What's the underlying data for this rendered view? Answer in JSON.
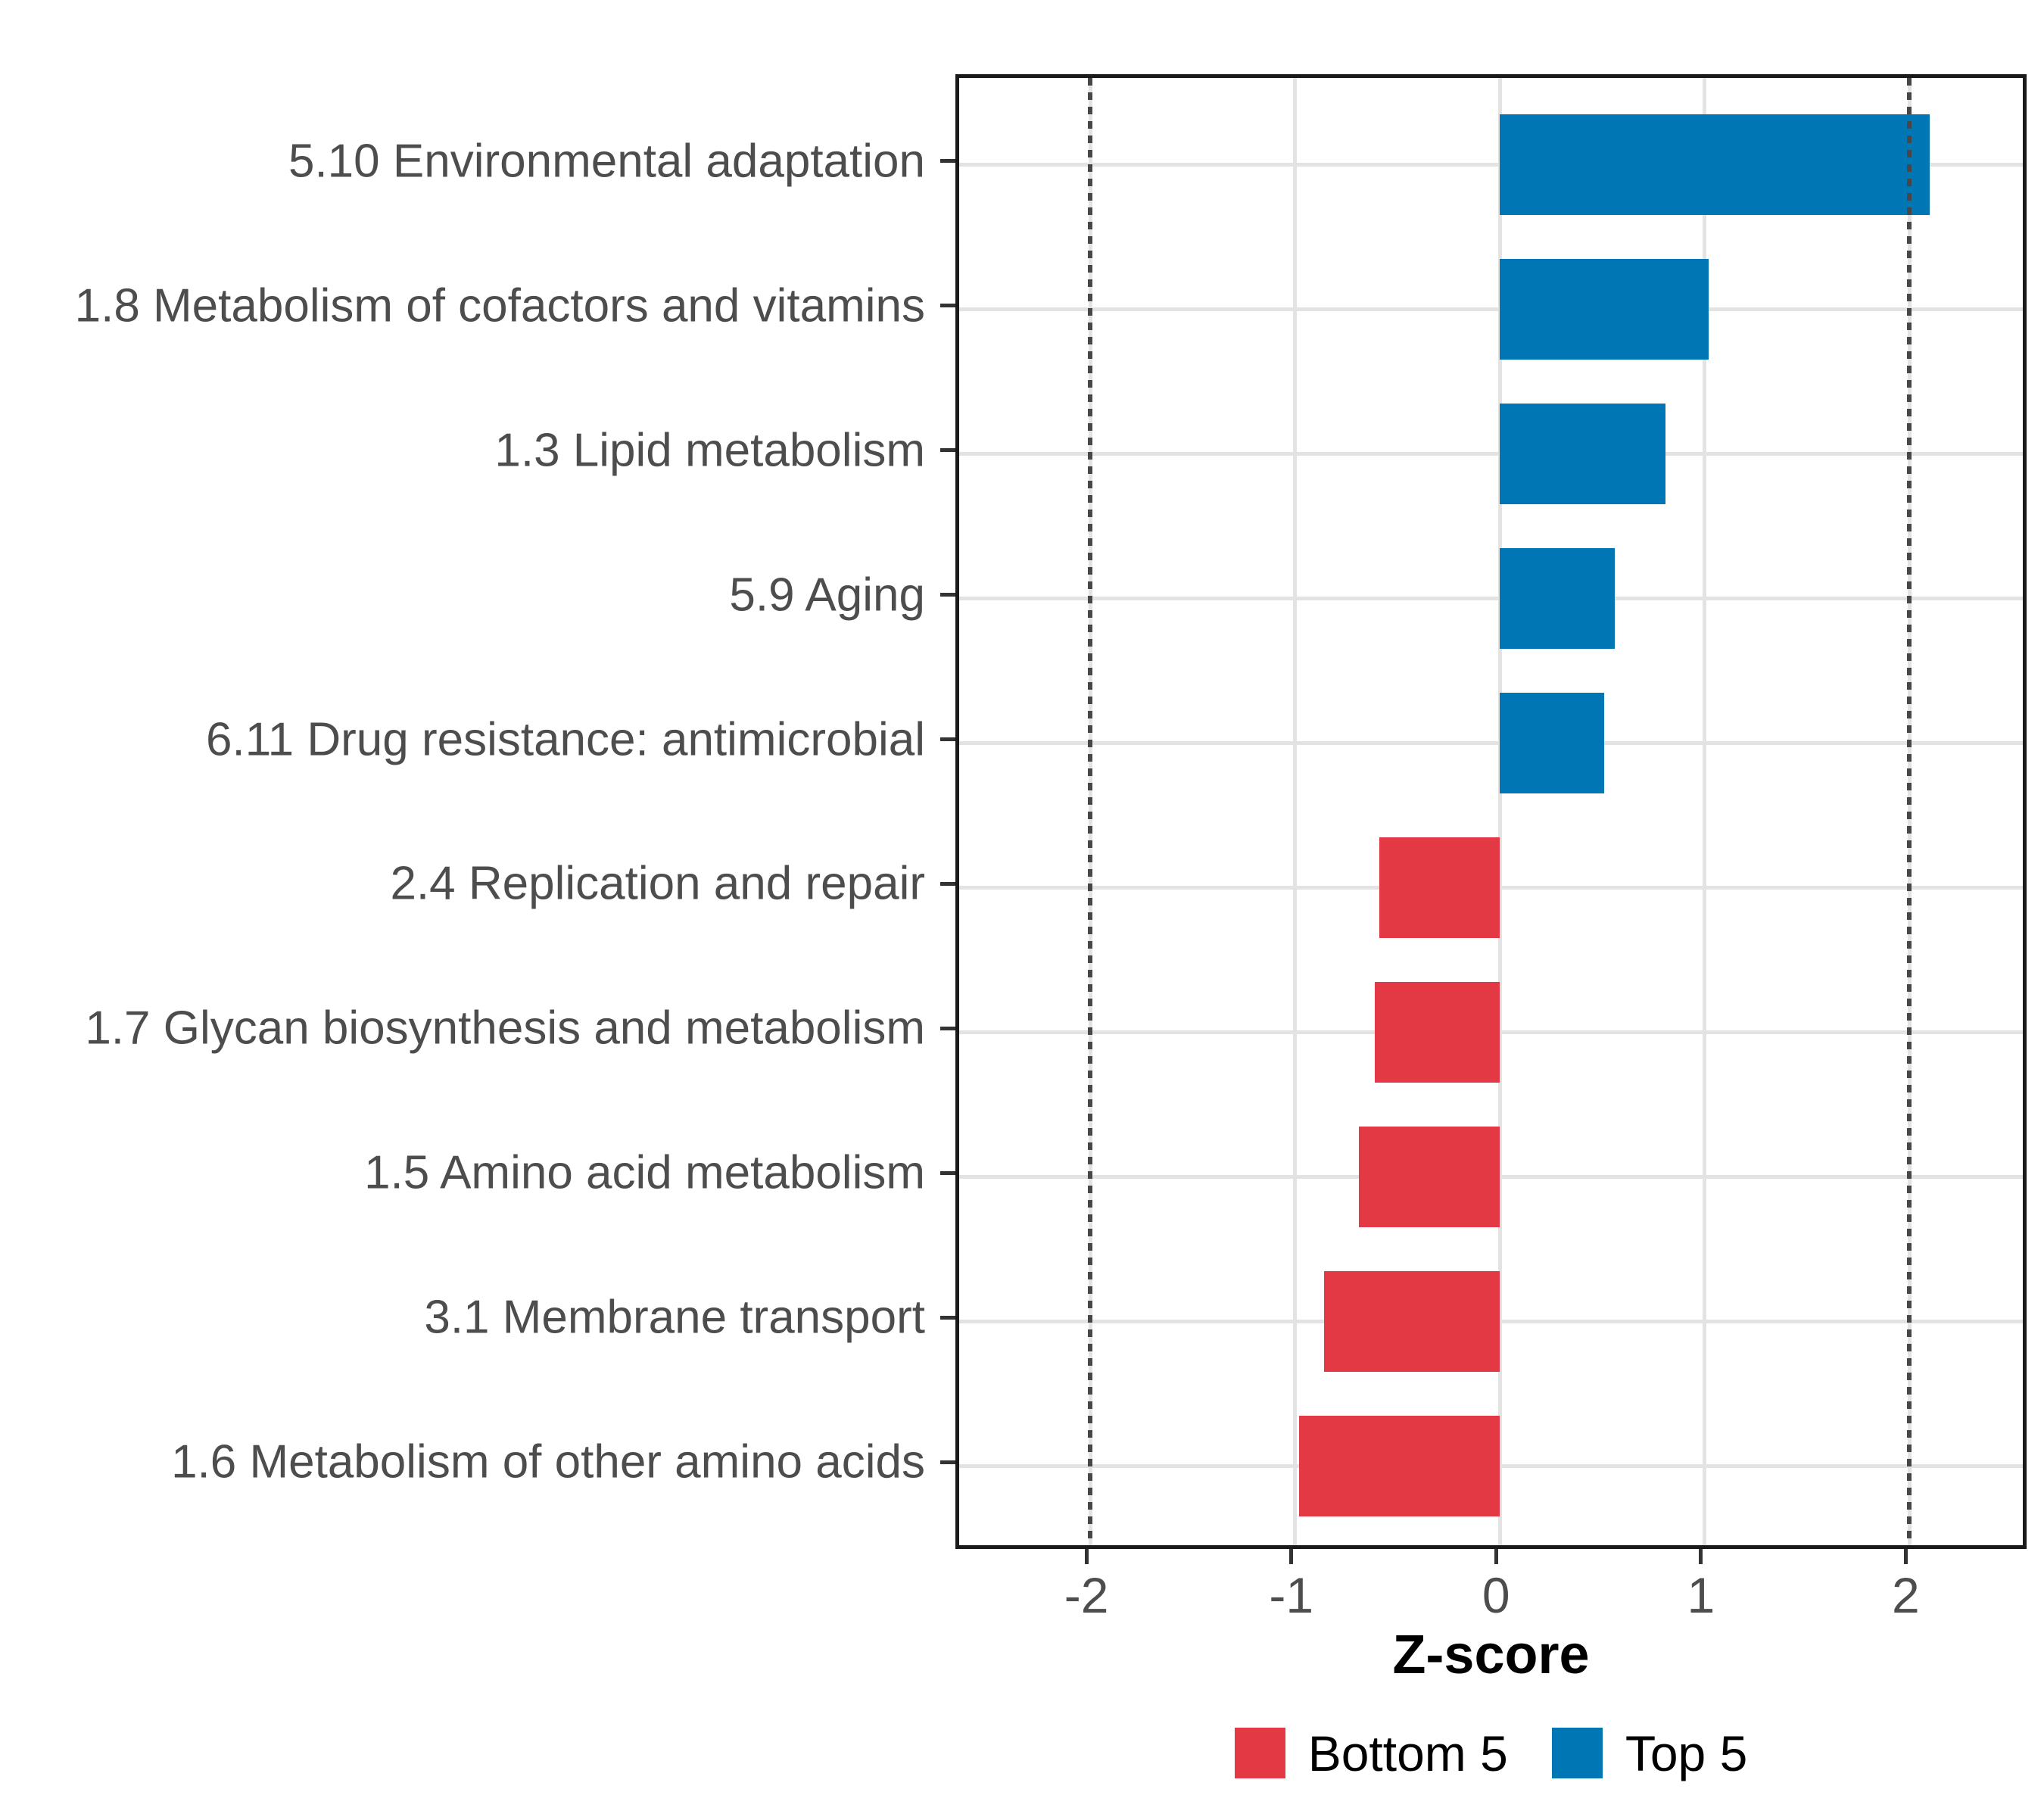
{
  "chart_data": {
    "type": "bar",
    "orientation": "horizontal",
    "title": "",
    "xlabel": "Z-score",
    "ylabel": "",
    "grid": true,
    "legend_position": "bottom",
    "x_ticks": [
      -2,
      -1,
      0,
      1,
      2
    ],
    "xlim": [
      -2.64,
      2.59
    ],
    "reference_lines": [
      -2,
      2
    ],
    "categories": [
      "5.10 Environmental adaptation",
      "1.8 Metabolism of cofactors and vitamins",
      "1.3 Lipid metabolism",
      "5.9 Aging",
      "6.11 Drug resistance: antimicrobial",
      "2.4 Replication and repair",
      "1.7 Glycan biosynthesis and metabolism",
      "1.5 Amino acid metabolism",
      "3.1 Membrane transport",
      "1.6 Metabolism of other amino acids"
    ],
    "values": [
      2.1,
      1.02,
      0.81,
      0.56,
      0.51,
      -0.59,
      -0.61,
      -0.69,
      -0.86,
      -0.98
    ],
    "items": [
      {
        "label": "5.10 Environmental adaptation",
        "value": 2.1,
        "group": "Top 5"
      },
      {
        "label": "1.8 Metabolism of cofactors and vitamins",
        "value": 1.02,
        "group": "Top 5"
      },
      {
        "label": "1.3 Lipid metabolism",
        "value": 0.81,
        "group": "Top 5"
      },
      {
        "label": "5.9 Aging",
        "value": 0.56,
        "group": "Top 5"
      },
      {
        "label": "6.11 Drug resistance: antimicrobial",
        "value": 0.51,
        "group": "Top 5"
      },
      {
        "label": "2.4 Replication and repair",
        "value": -0.59,
        "group": "Bottom 5"
      },
      {
        "label": "1.7 Glycan biosynthesis and metabolism",
        "value": -0.61,
        "group": "Bottom 5"
      },
      {
        "label": "1.5 Amino acid metabolism",
        "value": -0.69,
        "group": "Bottom 5"
      },
      {
        "label": "3.1 Membrane transport",
        "value": -0.86,
        "group": "Bottom 5"
      },
      {
        "label": "1.6 Metabolism of other amino acids",
        "value": -0.98,
        "group": "Bottom 5"
      }
    ],
    "legend": [
      {
        "label": "Bottom 5",
        "color": "#E33944"
      },
      {
        "label": "Top 5",
        "color": "#0077B4"
      }
    ],
    "group_colors": {
      "Bottom 5": "#E33944",
      "Top 5": "#0077B4"
    },
    "colors": {
      "bar_blue": "#0077B4",
      "bar_red": "#E33944",
      "gridline": "#E3E3E3",
      "reference_line": "#474747",
      "axis_text": "#4D4D4D",
      "axis_title": "#000000",
      "plot_border": "#1A1A1A"
    }
  }
}
